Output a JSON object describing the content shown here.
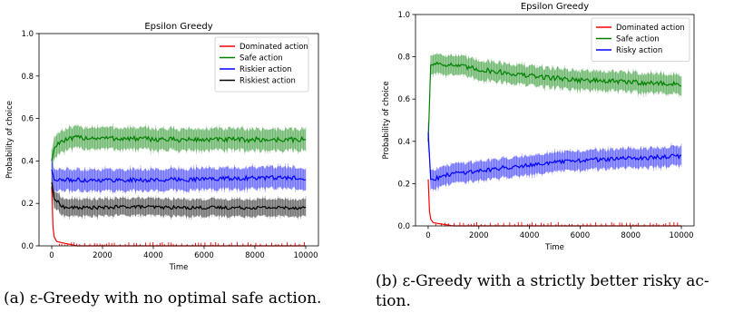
{
  "captions": {
    "a": "(a) ε-Greedy with no optimal safe action.",
    "b_line1": "(b) ε-Greedy with a strictly better risky ac-",
    "b_line2": "tion."
  },
  "chart_data": [
    {
      "type": "line",
      "title": "Epsilon Greedy",
      "xlabel": "Time",
      "ylabel": "Probability of choice",
      "xlim": [
        -500,
        10500
      ],
      "ylim": [
        0.0,
        1.0
      ],
      "xticks": [
        0,
        2000,
        4000,
        6000,
        8000,
        10000
      ],
      "yticks": [
        0.0,
        0.2,
        0.4,
        0.6,
        0.8,
        1.0
      ],
      "ytick_format": 1,
      "legend": "top-right",
      "grid": false,
      "series": [
        {
          "name": "Dominated action",
          "color": "#ff0000",
          "band": 0.0,
          "noise": 0.0,
          "points": [
            [
              0,
              0.28
            ],
            [
              60,
              0.05
            ],
            [
              200,
              0.02
            ],
            [
              1000,
              0.0
            ],
            [
              10000,
              0.0
            ]
          ]
        },
        {
          "name": "Safe action",
          "color": "#008000",
          "band": 0.05,
          "noise": 0.012,
          "points": [
            [
              0,
              0.4
            ],
            [
              100,
              0.46
            ],
            [
              300,
              0.49
            ],
            [
              1000,
              0.51
            ],
            [
              3000,
              0.505
            ],
            [
              5000,
              0.5
            ],
            [
              7000,
              0.5
            ],
            [
              10000,
              0.5
            ]
          ]
        },
        {
          "name": "Riskier action",
          "color": "#0000ff",
          "band": 0.05,
          "noise": 0.01,
          "points": [
            [
              0,
              0.36
            ],
            [
              100,
              0.31
            ],
            [
              500,
              0.31
            ],
            [
              2000,
              0.31
            ],
            [
              4000,
              0.31
            ],
            [
              6000,
              0.315
            ],
            [
              8000,
              0.32
            ],
            [
              10000,
              0.32
            ]
          ]
        },
        {
          "name": "Riskiest action",
          "color": "#000000",
          "band": 0.04,
          "noise": 0.008,
          "points": [
            [
              0,
              0.3
            ],
            [
              100,
              0.22
            ],
            [
              500,
              0.18
            ],
            [
              2000,
              0.18
            ],
            [
              3000,
              0.185
            ],
            [
              5000,
              0.18
            ],
            [
              8000,
              0.18
            ],
            [
              10000,
              0.18
            ]
          ]
        }
      ]
    },
    {
      "type": "line",
      "title": "Epsilon Greedy",
      "xlabel": "Time",
      "ylabel": "Probability of choice",
      "xlim": [
        -500,
        10500
      ],
      "ylim": [
        0.0,
        1.0
      ],
      "xticks": [
        0,
        2000,
        4000,
        6000,
        8000,
        10000
      ],
      "yticks": [
        0.0,
        0.2,
        0.4,
        0.6,
        0.8,
        1.0
      ],
      "ytick_format": 1,
      "legend": "top-right",
      "grid": false,
      "series": [
        {
          "name": "Dominated action",
          "color": "#ff0000",
          "band": 0.0,
          "noise": 0.0,
          "points": [
            [
              0,
              0.22
            ],
            [
              60,
              0.04
            ],
            [
              200,
              0.015
            ],
            [
              1000,
              0.0
            ],
            [
              10000,
              0.0
            ]
          ]
        },
        {
          "name": "Safe action",
          "color": "#008000",
          "band": 0.045,
          "noise": 0.012,
          "points": [
            [
              0,
              0.4
            ],
            [
              100,
              0.76
            ],
            [
              300,
              0.77
            ],
            [
              1000,
              0.76
            ],
            [
              2000,
              0.74
            ],
            [
              4000,
              0.71
            ],
            [
              6000,
              0.69
            ],
            [
              8000,
              0.68
            ],
            [
              10000,
              0.67
            ]
          ]
        },
        {
          "name": "Risky action",
          "color": "#0000ff",
          "band": 0.045,
          "noise": 0.01,
          "points": [
            [
              0,
              0.44
            ],
            [
              100,
              0.22
            ],
            [
              500,
              0.23
            ],
            [
              1000,
              0.25
            ],
            [
              2000,
              0.26
            ],
            [
              4000,
              0.29
            ],
            [
              6000,
              0.31
            ],
            [
              8000,
              0.32
            ],
            [
              10000,
              0.33
            ]
          ]
        }
      ]
    }
  ]
}
